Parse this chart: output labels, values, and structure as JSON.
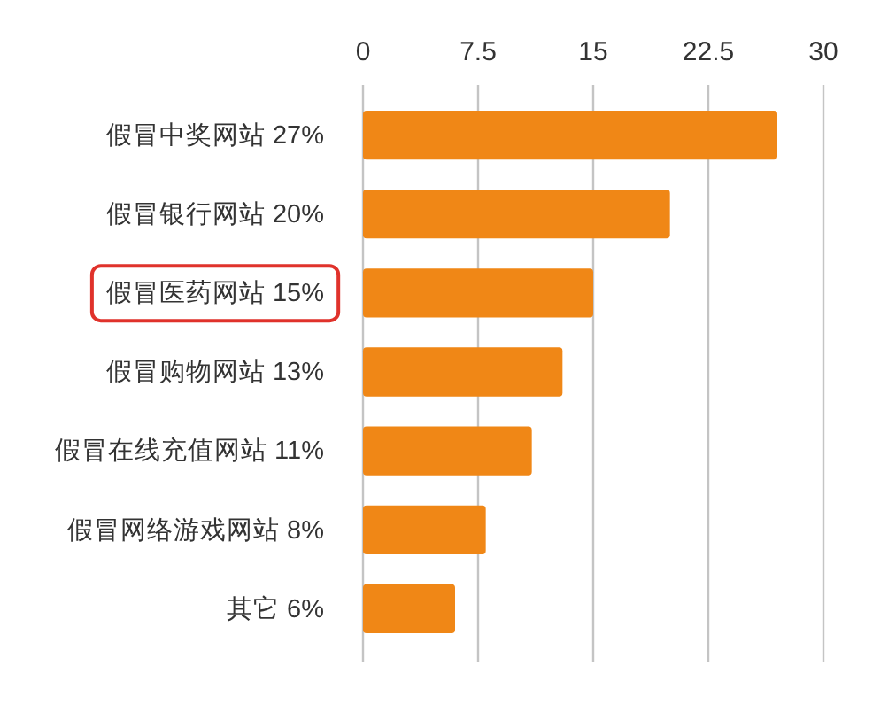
{
  "chart_data": {
    "type": "bar",
    "orientation": "horizontal",
    "categories": [
      "假冒中奖网站 27%",
      "假冒银行网站 20%",
      "假冒医药网站 15%",
      "假冒购物网站 13%",
      "假冒在线充值网站 11%",
      "假冒网络游戏网站 8%",
      "其它 6%"
    ],
    "values": [
      27,
      20,
      15,
      13,
      11,
      8,
      6
    ],
    "color": "#f08716",
    "xlim": [
      0,
      30
    ],
    "xticks": [
      0,
      7.5,
      15,
      22.5,
      30
    ],
    "grid": "x"
  }
}
